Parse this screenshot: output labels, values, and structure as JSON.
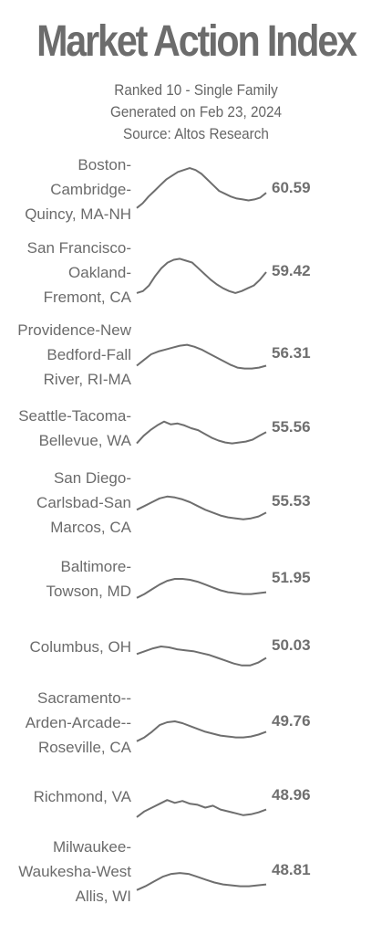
{
  "header": {
    "title": "Market Action Index",
    "subtitle_lines": [
      "Ranked 10 - Single Family",
      "Generated on Feb 23, 2024",
      "Source: Altos Research"
    ]
  },
  "colors": {
    "line": "#6e6e6e",
    "text": "#6b6b6b",
    "background": "#ffffff"
  },
  "chart_data": {
    "type": "line",
    "title": "Market Action Index",
    "series": [
      {
        "name": "Boston-Cambridge-Quincy, MA-NH",
        "label_lines": [
          "Boston-",
          "Cambridge-",
          "Quincy, MA-NH"
        ],
        "value": "60.59",
        "values": [
          40,
          45,
          52,
          58,
          64,
          70,
          74,
          78,
          80,
          82,
          80,
          76,
          70,
          64,
          58,
          55,
          52,
          50,
          49,
          48,
          49,
          51,
          56
        ]
      },
      {
        "name": "San Francisco-Oakland-Fremont, CA",
        "label_lines": [
          "San Francisco-",
          "Oakland-",
          "Fremont, CA"
        ],
        "value": "59.42",
        "values": [
          38,
          40,
          46,
          56,
          64,
          70,
          73,
          74,
          72,
          70,
          64,
          58,
          52,
          47,
          43,
          40,
          38,
          40,
          43,
          46,
          52,
          60
        ]
      },
      {
        "name": "Providence-New Bedford-Fall River, RI-MA",
        "label_lines": [
          "Providence-New",
          "Bedford-Fall",
          "River, RI-MA"
        ],
        "value": "56.31",
        "values": [
          48,
          54,
          60,
          63,
          65,
          67,
          69,
          70,
          68,
          65,
          61,
          57,
          53,
          49,
          46,
          45,
          45,
          46,
          48
        ]
      },
      {
        "name": "Seattle-Tacoma-Bellevue, WA",
        "label_lines": [
          "Seattle-Tacoma-",
          "Bellevue, WA"
        ],
        "value": "55.56",
        "values": [
          44,
          52,
          58,
          63,
          67,
          64,
          65,
          63,
          60,
          58,
          54,
          50,
          47,
          45,
          44,
          45,
          46,
          48,
          52,
          56
        ]
      },
      {
        "name": "San Diego-Carlsbad-San Marcos, CA",
        "label_lines": [
          "San Diego-",
          "Carlsbad-San",
          "Marcos, CA"
        ],
        "value": "55.53",
        "values": [
          52,
          56,
          60,
          64,
          66,
          65,
          63,
          60,
          56,
          52,
          49,
          46,
          44,
          43,
          42,
          43,
          45,
          49
        ]
      },
      {
        "name": "Baltimore-Towson, MD",
        "label_lines": [
          "Baltimore-",
          "Towson, MD"
        ],
        "value": "51.95",
        "values": [
          40,
          44,
          49,
          54,
          58,
          60,
          60,
          59,
          57,
          54,
          51,
          48,
          46,
          45,
          44,
          44,
          45,
          46
        ]
      },
      {
        "name": "Columbus, OH",
        "label_lines": [
          "Columbus, OH"
        ],
        "value": "50.03",
        "values": [
          52,
          55,
          58,
          60,
          59,
          57,
          56,
          55,
          53,
          51,
          48,
          45,
          42,
          40,
          40,
          43,
          48
        ]
      },
      {
        "name": "Sacramento--Arden-Arcade--Roseville, CA",
        "label_lines": [
          "Sacramento--",
          "Arden-Arcade--",
          "Roseville, CA"
        ],
        "value": "49.76",
        "values": [
          40,
          44,
          50,
          57,
          60,
          61,
          59,
          56,
          53,
          50,
          48,
          46,
          45,
          44,
          44,
          45,
          47,
          50
        ]
      },
      {
        "name": "Richmond, VA",
        "label_lines": [
          "Richmond, VA"
        ],
        "value": "48.96",
        "values": [
          38,
          44,
          48,
          52,
          56,
          53,
          55,
          52,
          51,
          48,
          50,
          46,
          44,
          42,
          40,
          41,
          43,
          46
        ]
      },
      {
        "name": "Milwaukee-Waukesha-West Allis, WI",
        "label_lines": [
          "Milwaukee-",
          "Waukesha-West",
          "Allis, WI"
        ],
        "value": "48.81",
        "values": [
          40,
          44,
          49,
          54,
          57,
          58,
          57,
          54,
          51,
          48,
          46,
          45,
          44,
          44,
          45,
          46
        ]
      }
    ]
  }
}
